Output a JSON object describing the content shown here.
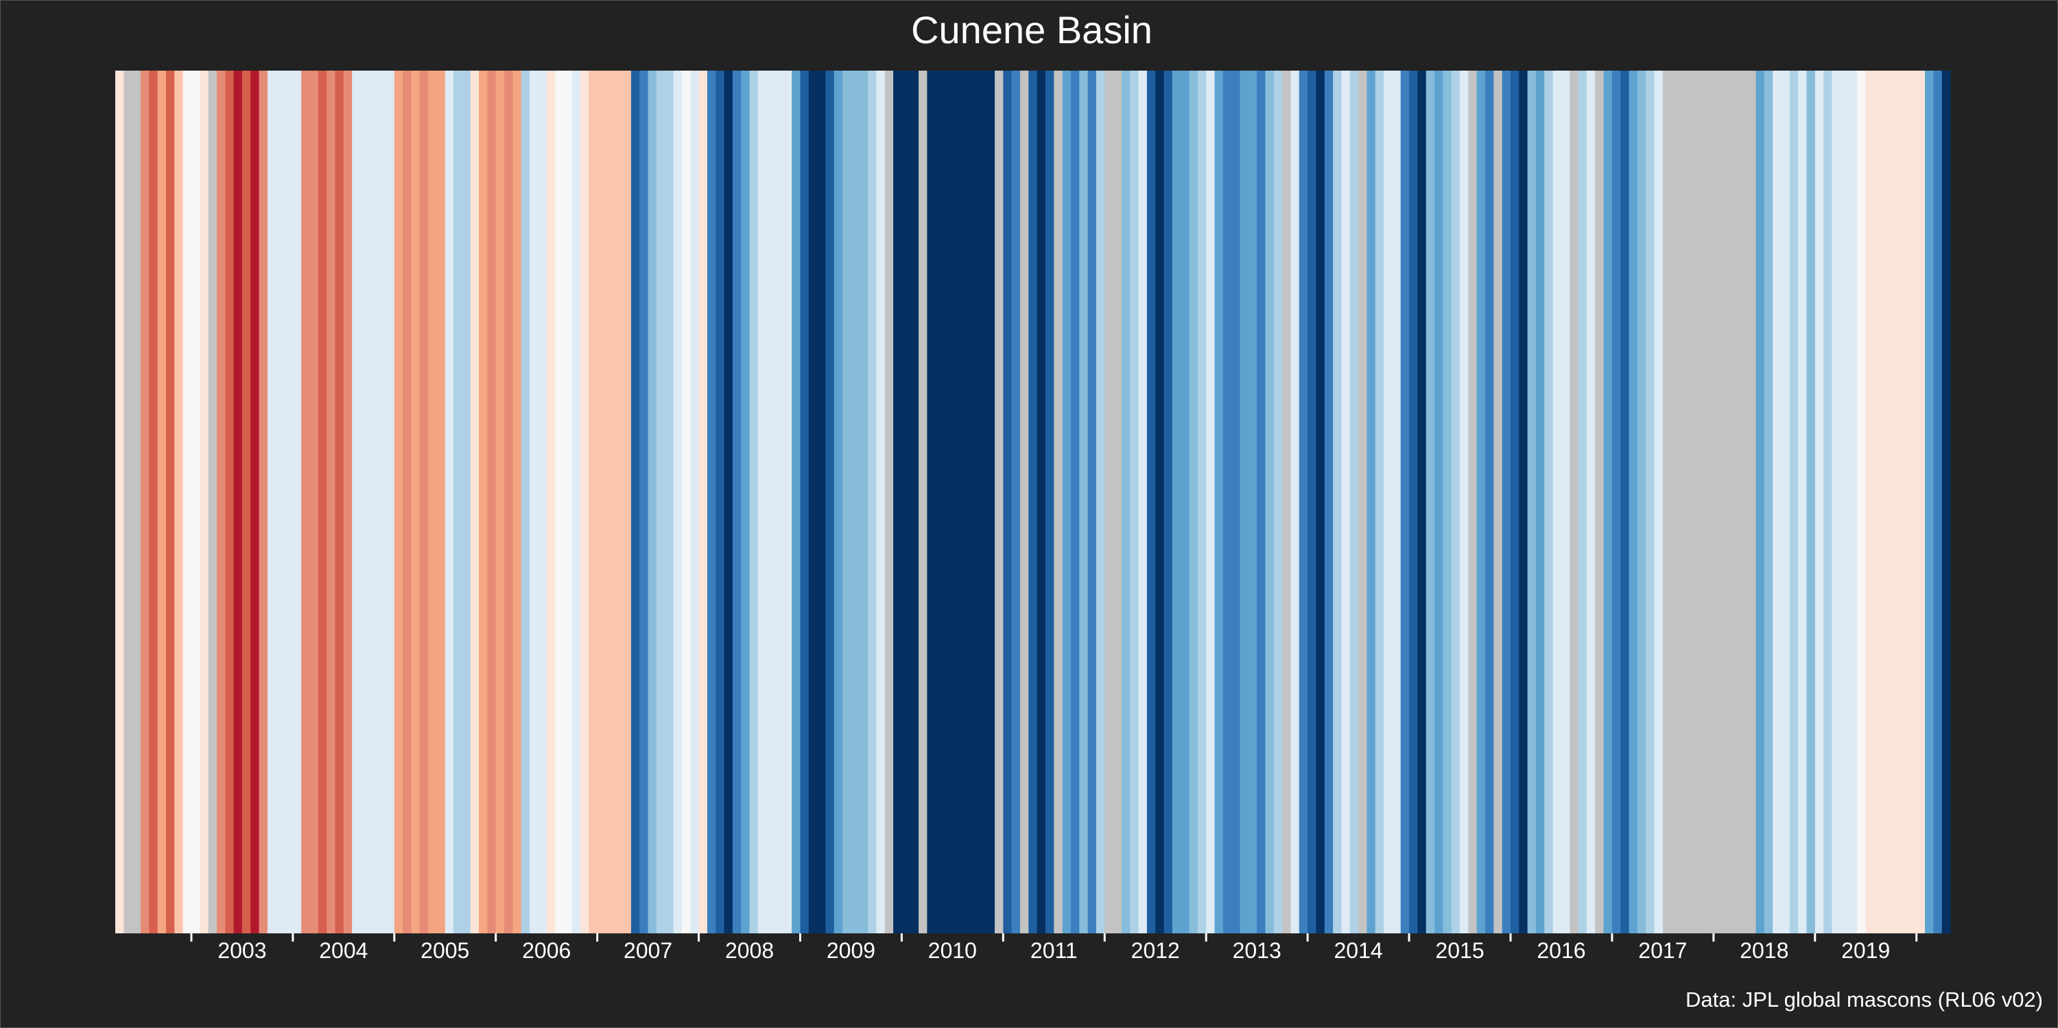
{
  "chart_data": {
    "type": "heatmap",
    "title": "Cunene Basin",
    "caption": "Data: JPL global mascons (RL06 v02)",
    "xlabel": "",
    "ylabel": "",
    "x_range": [
      "2002-04",
      "2020-05"
    ],
    "x_ticks": [
      "2003",
      "2004",
      "2005",
      "2006",
      "2007",
      "2008",
      "2009",
      "2010",
      "2011",
      "2012",
      "2013",
      "2014",
      "2015",
      "2016",
      "2017",
      "2018",
      "2019"
    ],
    "missing_color": "#c3c3c3",
    "colors_by_level": {
      "-4": "#b2182b",
      "-3": "#d6604d",
      "-2": "#e68c76",
      "-1": "#f4a582",
      "-0.5": "#fbc5ab",
      "0": "#fde4d8",
      "0.5": "#f7f7f7",
      "1": "#deebf5",
      "2": "#aed1e6",
      "3": "#87bcdb",
      "4": "#5ea3cf",
      "5": "#3b7fbf",
      "6": "#1f5fa0",
      "7": "#053061"
    },
    "legend": "none",
    "grid": false,
    "stripes": [
      {
        "start": "2002-04",
        "months": 1,
        "level": 0
      },
      {
        "start": "2002-05",
        "months": 2,
        "level": null
      },
      {
        "start": "2002-07",
        "months": 1,
        "level": -2
      },
      {
        "start": "2002-08",
        "months": 1,
        "level": -3
      },
      {
        "start": "2002-09",
        "months": 1,
        "level": -1
      },
      {
        "start": "2002-10",
        "months": 1,
        "level": -3
      },
      {
        "start": "2002-11",
        "months": 1,
        "level": -0.5
      },
      {
        "start": "2002-12",
        "months": 2,
        "level": 0.5
      },
      {
        "start": "2003-02",
        "months": 1,
        "level": 0
      },
      {
        "start": "2003-03",
        "months": 1,
        "level": null
      },
      {
        "start": "2003-04",
        "months": 1,
        "level": -2
      },
      {
        "start": "2003-05",
        "months": 1,
        "level": -3
      },
      {
        "start": "2003-06",
        "months": 1,
        "level": -4
      },
      {
        "start": "2003-07",
        "months": 1,
        "level": -3
      },
      {
        "start": "2003-08",
        "months": 1,
        "level": -4
      },
      {
        "start": "2003-09",
        "months": 1,
        "level": -2
      },
      {
        "start": "2003-10",
        "months": 1,
        "level": 1
      },
      {
        "start": "2003-11",
        "months": 3,
        "level": 1
      },
      {
        "start": "2004-02",
        "months": 2,
        "level": -2
      },
      {
        "start": "2004-04",
        "months": 1,
        "level": -3
      },
      {
        "start": "2004-05",
        "months": 1,
        "level": -2
      },
      {
        "start": "2004-06",
        "months": 1,
        "level": -3
      },
      {
        "start": "2004-07",
        "months": 1,
        "level": -2
      },
      {
        "start": "2004-08",
        "months": 1,
        "level": 1
      },
      {
        "start": "2004-09",
        "months": 4,
        "level": 1
      },
      {
        "start": "2005-01",
        "months": 1,
        "level": -1
      },
      {
        "start": "2005-02",
        "months": 1,
        "level": -2
      },
      {
        "start": "2005-03",
        "months": 1,
        "level": -1
      },
      {
        "start": "2005-04",
        "months": 1,
        "level": -2
      },
      {
        "start": "2005-05",
        "months": 2,
        "level": -1
      },
      {
        "start": "2005-07",
        "months": 1,
        "level": 1
      },
      {
        "start": "2005-08",
        "months": 2,
        "level": 2
      },
      {
        "start": "2005-10",
        "months": 1,
        "level": 0
      },
      {
        "start": "2005-11",
        "months": 1,
        "level": -1
      },
      {
        "start": "2005-12",
        "months": 1,
        "level": -2
      },
      {
        "start": "2006-01",
        "months": 1,
        "level": -1
      },
      {
        "start": "2006-02",
        "months": 1,
        "level": -2
      },
      {
        "start": "2006-03",
        "months": 1,
        "level": -1
      },
      {
        "start": "2006-04",
        "months": 1,
        "level": 2
      },
      {
        "start": "2006-05",
        "months": 2,
        "level": 1
      },
      {
        "start": "2006-07",
        "months": 1,
        "level": 0
      },
      {
        "start": "2006-08",
        "months": 2,
        "level": 0.5
      },
      {
        "start": "2006-10",
        "months": 1,
        "level": 1
      },
      {
        "start": "2006-11",
        "months": 1,
        "level": 0
      },
      {
        "start": "2006-12",
        "months": 5,
        "level": -0.5
      },
      {
        "start": "2007-05",
        "months": 1,
        "level": 6
      },
      {
        "start": "2007-06",
        "months": 1,
        "level": 5
      },
      {
        "start": "2007-07",
        "months": 1,
        "level": 3
      },
      {
        "start": "2007-08",
        "months": 2,
        "level": 2
      },
      {
        "start": "2007-10",
        "months": 1,
        "level": 1
      },
      {
        "start": "2007-11",
        "months": 1,
        "level": 0.5
      },
      {
        "start": "2007-12",
        "months": 1,
        "level": 1
      },
      {
        "start": "2008-01",
        "months": 1,
        "level": 0
      },
      {
        "start": "2008-02",
        "months": 1,
        "level": 5
      },
      {
        "start": "2008-03",
        "months": 1,
        "level": 6
      },
      {
        "start": "2008-04",
        "months": 1,
        "level": 7
      },
      {
        "start": "2008-05",
        "months": 1,
        "level": 5
      },
      {
        "start": "2008-06",
        "months": 1,
        "level": 4
      },
      {
        "start": "2008-07",
        "months": 1,
        "level": 2
      },
      {
        "start": "2008-08",
        "months": 1,
        "level": 1
      },
      {
        "start": "2008-09",
        "months": 3,
        "level": 1
      },
      {
        "start": "2008-12",
        "months": 1,
        "level": 4
      },
      {
        "start": "2009-01",
        "months": 1,
        "level": 6
      },
      {
        "start": "2009-02",
        "months": 2,
        "level": 7
      },
      {
        "start": "2009-04",
        "months": 1,
        "level": 6
      },
      {
        "start": "2009-05",
        "months": 1,
        "level": 4
      },
      {
        "start": "2009-06",
        "months": 3,
        "level": 3
      },
      {
        "start": "2009-09",
        "months": 1,
        "level": 2
      },
      {
        "start": "2009-10",
        "months": 1,
        "level": 1
      },
      {
        "start": "2009-11",
        "months": 1,
        "level": null
      },
      {
        "start": "2009-12",
        "months": 3,
        "level": 7
      },
      {
        "start": "2010-03",
        "months": 1,
        "level": null
      },
      {
        "start": "2010-04",
        "months": 8,
        "level": 7
      },
      {
        "start": "2010-12",
        "months": 1,
        "level": null
      },
      {
        "start": "2011-01",
        "months": 1,
        "level": 6
      },
      {
        "start": "2011-02",
        "months": 1,
        "level": 5
      },
      {
        "start": "2011-03",
        "months": 1,
        "level": null
      },
      {
        "start": "2011-04",
        "months": 1,
        "level": 6
      },
      {
        "start": "2011-05",
        "months": 1,
        "level": 7
      },
      {
        "start": "2011-06",
        "months": 1,
        "level": 6
      },
      {
        "start": "2011-07",
        "months": 1,
        "level": null
      },
      {
        "start": "2011-08",
        "months": 1,
        "level": 4
      },
      {
        "start": "2011-09",
        "months": 1,
        "level": 5
      },
      {
        "start": "2011-10",
        "months": 1,
        "level": 3
      },
      {
        "start": "2011-11",
        "months": 1,
        "level": 5
      },
      {
        "start": "2011-12",
        "months": 1,
        "level": 2
      },
      {
        "start": "2012-01",
        "months": 2,
        "level": null
      },
      {
        "start": "2012-03",
        "months": 1,
        "level": 3
      },
      {
        "start": "2012-04",
        "months": 1,
        "level": 2
      },
      {
        "start": "2012-05",
        "months": 1,
        "level": 1
      },
      {
        "start": "2012-06",
        "months": 1,
        "level": 6
      },
      {
        "start": "2012-07",
        "months": 1,
        "level": 7
      },
      {
        "start": "2012-08",
        "months": 1,
        "level": 6
      },
      {
        "start": "2012-09",
        "months": 2,
        "level": 4
      },
      {
        "start": "2012-11",
        "months": 1,
        "level": 3
      },
      {
        "start": "2012-12",
        "months": 1,
        "level": 2
      },
      {
        "start": "2013-01",
        "months": 1,
        "level": 1
      },
      {
        "start": "2013-02",
        "months": 1,
        "level": 4
      },
      {
        "start": "2013-03",
        "months": 2,
        "level": 5
      },
      {
        "start": "2013-05",
        "months": 2,
        "level": 4
      },
      {
        "start": "2013-07",
        "months": 1,
        "level": 5
      },
      {
        "start": "2013-08",
        "months": 1,
        "level": 3
      },
      {
        "start": "2013-09",
        "months": 1,
        "level": 2
      },
      {
        "start": "2013-10",
        "months": 1,
        "level": null
      },
      {
        "start": "2013-11",
        "months": 1,
        "level": 1
      },
      {
        "start": "2013-12",
        "months": 1,
        "level": 5
      },
      {
        "start": "2014-01",
        "months": 1,
        "level": 6
      },
      {
        "start": "2014-02",
        "months": 1,
        "level": 7
      },
      {
        "start": "2014-03",
        "months": 1,
        "level": 5
      },
      {
        "start": "2014-04",
        "months": 1,
        "level": 2
      },
      {
        "start": "2014-05",
        "months": 1,
        "level": 1
      },
      {
        "start": "2014-06",
        "months": 1,
        "level": 2
      },
      {
        "start": "2014-07",
        "months": 1,
        "level": null
      },
      {
        "start": "2014-08",
        "months": 1,
        "level": 4
      },
      {
        "start": "2014-09",
        "months": 1,
        "level": 2
      },
      {
        "start": "2014-10",
        "months": 2,
        "level": 1
      },
      {
        "start": "2014-12",
        "months": 1,
        "level": 5
      },
      {
        "start": "2015-01",
        "months": 1,
        "level": 6
      },
      {
        "start": "2015-02",
        "months": 1,
        "level": 7
      },
      {
        "start": "2015-03",
        "months": 1,
        "level": 3
      },
      {
        "start": "2015-04",
        "months": 1,
        "level": 4
      },
      {
        "start": "2015-05",
        "months": 1,
        "level": 3
      },
      {
        "start": "2015-06",
        "months": 1,
        "level": 2
      },
      {
        "start": "2015-07",
        "months": 1,
        "level": 1
      },
      {
        "start": "2015-08",
        "months": 1,
        "level": null
      },
      {
        "start": "2015-09",
        "months": 1,
        "level": 4
      },
      {
        "start": "2015-10",
        "months": 1,
        "level": 5
      },
      {
        "start": "2015-11",
        "months": 1,
        "level": null
      },
      {
        "start": "2015-12",
        "months": 1,
        "level": 5
      },
      {
        "start": "2016-01",
        "months": 1,
        "level": 6
      },
      {
        "start": "2016-02",
        "months": 1,
        "level": 7
      },
      {
        "start": "2016-03",
        "months": 1,
        "level": 3
      },
      {
        "start": "2016-04",
        "months": 1,
        "level": 4
      },
      {
        "start": "2016-05",
        "months": 1,
        "level": 2
      },
      {
        "start": "2016-06",
        "months": 2,
        "level": 1
      },
      {
        "start": "2016-08",
        "months": 1,
        "level": null
      },
      {
        "start": "2016-09",
        "months": 1,
        "level": 2
      },
      {
        "start": "2016-10",
        "months": 1,
        "level": 1
      },
      {
        "start": "2016-11",
        "months": 1,
        "level": null
      },
      {
        "start": "2016-12",
        "months": 1,
        "level": 4
      },
      {
        "start": "2017-01",
        "months": 1,
        "level": 5
      },
      {
        "start": "2017-02",
        "months": 1,
        "level": 6
      },
      {
        "start": "2017-03",
        "months": 1,
        "level": 4
      },
      {
        "start": "2017-04",
        "months": 1,
        "level": 3
      },
      {
        "start": "2017-05",
        "months": 1,
        "level": 2
      },
      {
        "start": "2017-06",
        "months": 1,
        "level": 1
      },
      {
        "start": "2017-07",
        "months": 11,
        "level": null
      },
      {
        "start": "2018-06",
        "months": 1,
        "level": 4
      },
      {
        "start": "2018-07",
        "months": 1,
        "level": 3
      },
      {
        "start": "2018-08",
        "months": 2,
        "level": 1
      },
      {
        "start": "2018-10",
        "months": 1,
        "level": 2
      },
      {
        "start": "2018-11",
        "months": 1,
        "level": 1
      },
      {
        "start": "2018-12",
        "months": 1,
        "level": 3
      },
      {
        "start": "2019-01",
        "months": 1,
        "level": 1
      },
      {
        "start": "2019-02",
        "months": 1,
        "level": 2
      },
      {
        "start": "2019-03",
        "months": 3,
        "level": 1
      },
      {
        "start": "2019-06",
        "months": 1,
        "level": 0.5
      },
      {
        "start": "2019-07",
        "months": 7,
        "level": 0
      },
      {
        "start": "2020-02",
        "months": 1,
        "level": 4
      },
      {
        "start": "2020-03",
        "months": 1,
        "level": 5
      },
      {
        "start": "2020-04",
        "months": 1,
        "level": 7
      }
    ]
  }
}
